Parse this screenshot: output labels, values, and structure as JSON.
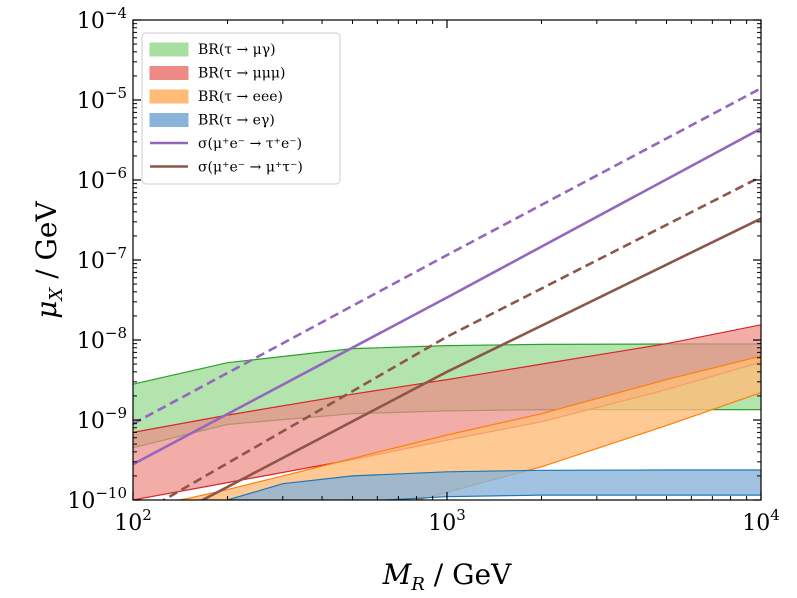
{
  "chart_data": {
    "type": "area",
    "title": "",
    "xlabel": "M_R / GeV",
    "ylabel": "μ_X / GeV",
    "xscale": "log",
    "yscale": "log",
    "xlim": [
      100,
      10000
    ],
    "ylim": [
      1e-10,
      0.0001
    ],
    "x_ticks": [
      {
        "value": 100,
        "base": "10",
        "exp": "2"
      },
      {
        "value": 1000,
        "base": "10",
        "exp": "3"
      },
      {
        "value": 10000,
        "base": "10",
        "exp": "4"
      }
    ],
    "y_ticks": [
      {
        "value": 1e-10,
        "base": "10",
        "exp": "−10"
      },
      {
        "value": 1e-09,
        "base": "10",
        "exp": "−9"
      },
      {
        "value": 1e-08,
        "base": "10",
        "exp": "−8"
      },
      {
        "value": 1e-07,
        "base": "10",
        "exp": "−7"
      },
      {
        "value": 1e-06,
        "base": "10",
        "exp": "−6"
      },
      {
        "value": 1e-05,
        "base": "10",
        "exp": "−5"
      },
      {
        "value": 0.0001,
        "base": "10",
        "exp": "−4"
      }
    ],
    "legend_position": "top-left",
    "bands": [
      {
        "name": "BR(τ → μγ)",
        "fill": "#a6dfa0",
        "edge": "#2ca02c",
        "opacity": 0.85,
        "x": [
          100,
          200,
          500,
          1000,
          2000,
          5000,
          10000
        ],
        "upper": [
          2.8e-09,
          5.2e-09,
          7.8e-09,
          8.5e-09,
          8.8e-09,
          8.9e-09,
          8.9e-09
        ],
        "lower": [
          4.5e-10,
          8.8e-10,
          1.2e-09,
          1.3e-09,
          1.35e-09,
          1.35e-09,
          1.35e-09
        ]
      },
      {
        "name": "BR(τ → μμμ)",
        "fill": "#ed8a85",
        "edge": "#d62728",
        "opacity": 0.7,
        "x": [
          100,
          200,
          500,
          1000,
          2000,
          5000,
          10000
        ],
        "upper": [
          7e-10,
          1.15e-09,
          2.1e-09,
          3.2e-09,
          5e-09,
          9e-09,
          1.55e-08
        ],
        "lower": [
          1e-10,
          1.65e-10,
          3.2e-10,
          5.6e-10,
          9.5e-10,
          2.4e-09,
          5.3e-09
        ]
      },
      {
        "name": "BR(τ → eee)",
        "fill": "#ffbb78",
        "edge": "#ff7f0e",
        "opacity": 0.8,
        "x": [
          100,
          150,
          200,
          300,
          500,
          1000,
          2000,
          5000,
          10000
        ],
        "upper": [
          8e-11,
          1.05e-10,
          1.35e-10,
          2e-10,
          3.3e-10,
          6.5e-10,
          1.2e-09,
          3.2e-09,
          6.3e-09
        ],
        "lower": [
          1e-11,
          1e-11,
          1e-11,
          3e-11,
          6e-11,
          1.25e-10,
          2.6e-10,
          8.5e-10,
          2.2e-09
        ]
      },
      {
        "name": "BR(τ → eγ)",
        "fill": "#8ab4d9",
        "edge": "#1f77b4",
        "opacity": 0.8,
        "x": [
          100,
          200,
          300,
          500,
          1000,
          2000,
          5000,
          10000
        ],
        "upper": [
          7e-11,
          1e-10,
          1.6e-10,
          2e-10,
          2.25e-10,
          2.35e-10,
          2.37e-10,
          2.37e-10
        ],
        "lower": [
          1e-11,
          2e-11,
          6e-11,
          9.5e-11,
          1.1e-10,
          1.15e-10,
          1.15e-10,
          1.15e-10
        ]
      }
    ],
    "lines": [
      {
        "name": "σ(μ⁺e⁻ → τ⁺e⁻)",
        "color": "#9467bd",
        "x": [
          100,
          1000,
          10000
        ],
        "solid": [
          2.8e-10,
          3.4e-08,
          4.4e-06
        ],
        "dashed": [
          9e-10,
          1.15e-07,
          1.4e-05
        ]
      },
      {
        "name": "σ(μ⁺e⁻ → μ⁺τ⁻)",
        "color": "#8c564b",
        "x": [
          100,
          1000,
          10000
        ],
        "solid": [
          3.5e-11,
          4e-09,
          3.3e-07
        ],
        "dashed": [
          6e-11,
          1.1e-08,
          1.1e-06
        ]
      }
    ]
  }
}
